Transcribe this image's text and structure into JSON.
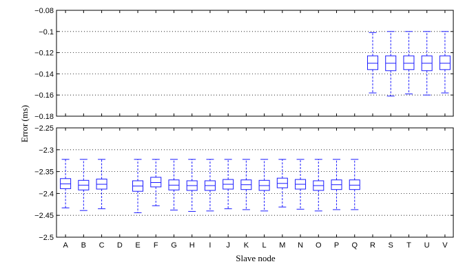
{
  "chart_data": {
    "type": "boxplot",
    "xlabel": "Slave node",
    "ylabel": "Error (ms)",
    "categories": [
      "A",
      "B",
      "C",
      "D",
      "E",
      "F",
      "G",
      "H",
      "I",
      "J",
      "K",
      "L",
      "M",
      "N",
      "O",
      "P",
      "Q",
      "R",
      "S",
      "T",
      "U",
      "V"
    ],
    "grid": true,
    "panels": [
      {
        "name": "top",
        "ylim": [
          -0.18,
          -0.08
        ],
        "yticks": [
          -0.18,
          -0.16,
          -0.14,
          -0.12,
          -0.1,
          -0.08
        ],
        "ytick_labels": [
          "−0.18",
          "−0.16",
          "−0.14",
          "−0.12",
          "−0.1",
          "−0.08"
        ],
        "boxes": [
          {
            "category": "R",
            "whislo": -0.158,
            "q1": -0.136,
            "med": -0.13,
            "q3": -0.123,
            "whishi": -0.101
          },
          {
            "category": "S",
            "whislo": -0.161,
            "q1": -0.137,
            "med": -0.13,
            "q3": -0.123,
            "whishi": -0.1
          },
          {
            "category": "T",
            "whislo": -0.159,
            "q1": -0.136,
            "med": -0.13,
            "q3": -0.123,
            "whishi": -0.1
          },
          {
            "category": "U",
            "whislo": -0.16,
            "q1": -0.137,
            "med": -0.13,
            "q3": -0.123,
            "whishi": -0.1
          },
          {
            "category": "V",
            "whislo": -0.158,
            "q1": -0.136,
            "med": -0.13,
            "q3": -0.123,
            "whishi": -0.1
          }
        ]
      },
      {
        "name": "bottom",
        "ylim": [
          -2.5,
          -2.25
        ],
        "yticks": [
          -2.5,
          -2.45,
          -2.4,
          -2.35,
          -2.3,
          -2.25
        ],
        "ytick_labels": [
          "−2.5",
          "−2.45",
          "−2.4",
          "−2.35",
          "−2.3",
          "−2.25"
        ],
        "boxes": [
          {
            "category": "A",
            "whislo": -2.433,
            "q1": -2.389,
            "med": -2.378,
            "q3": -2.366,
            "whishi": -2.322
          },
          {
            "category": "B",
            "whislo": -2.439,
            "q1": -2.392,
            "med": -2.381,
            "q3": -2.37,
            "whishi": -2.322
          },
          {
            "category": "C",
            "whislo": -2.435,
            "q1": -2.39,
            "med": -2.379,
            "q3": -2.367,
            "whishi": -2.322
          },
          {
            "category": "E",
            "whislo": -2.444,
            "q1": -2.395,
            "med": -2.383,
            "q3": -2.371,
            "whishi": -2.322
          },
          {
            "category": "F",
            "whislo": -2.428,
            "q1": -2.385,
            "med": -2.375,
            "q3": -2.363,
            "whishi": -2.322
          },
          {
            "category": "G",
            "whislo": -2.438,
            "q1": -2.392,
            "med": -2.381,
            "q3": -2.369,
            "whishi": -2.322
          },
          {
            "category": "H",
            "whislo": -2.441,
            "q1": -2.393,
            "med": -2.382,
            "q3": -2.371,
            "whishi": -2.322
          },
          {
            "category": "I",
            "whislo": -2.44,
            "q1": -2.393,
            "med": -2.382,
            "q3": -2.371,
            "whishi": -2.322
          },
          {
            "category": "J",
            "whislo": -2.435,
            "q1": -2.39,
            "med": -2.379,
            "q3": -2.368,
            "whishi": -2.322
          },
          {
            "category": "K",
            "whislo": -2.437,
            "q1": -2.391,
            "med": -2.38,
            "q3": -2.369,
            "whishi": -2.322
          },
          {
            "category": "L",
            "whislo": -2.44,
            "q1": -2.393,
            "med": -2.382,
            "q3": -2.37,
            "whishi": -2.322
          },
          {
            "category": "M",
            "whislo": -2.431,
            "q1": -2.387,
            "med": -2.377,
            "q3": -2.365,
            "whishi": -2.322
          },
          {
            "category": "N",
            "whislo": -2.436,
            "q1": -2.39,
            "med": -2.379,
            "q3": -2.368,
            "whishi": -2.322
          },
          {
            "category": "O",
            "whislo": -2.44,
            "q1": -2.393,
            "med": -2.382,
            "q3": -2.371,
            "whishi": -2.322
          },
          {
            "category": "P",
            "whislo": -2.437,
            "q1": -2.391,
            "med": -2.38,
            "q3": -2.369,
            "whishi": -2.322
          },
          {
            "category": "Q",
            "whislo": -2.437,
            "q1": -2.391,
            "med": -2.381,
            "q3": -2.369,
            "whishi": -2.322
          }
        ]
      }
    ]
  }
}
